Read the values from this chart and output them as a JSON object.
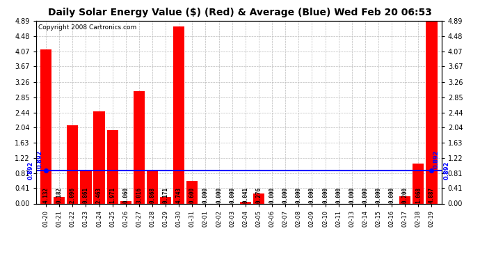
{
  "title": "Daily Solar Energy Value ($) (Red) & Average (Blue) Wed Feb 20 06:53",
  "copyright": "Copyright 2008 Cartronics.com",
  "categories": [
    "01-20",
    "01-21",
    "01-22",
    "01-23",
    "01-24",
    "01-25",
    "01-26",
    "01-27",
    "01-28",
    "01-29",
    "01-30",
    "01-31",
    "02-01",
    "02-02",
    "02-03",
    "02-04",
    "02-05",
    "02-06",
    "02-07",
    "02-08",
    "02-09",
    "02-10",
    "02-11",
    "02-13",
    "02-14",
    "02-15",
    "02-16",
    "02-17",
    "02-18",
    "02-19"
  ],
  "values": [
    4.132,
    0.182,
    2.096,
    0.861,
    2.463,
    1.971,
    0.06,
    3.016,
    0.868,
    0.171,
    4.743,
    0.6,
    0.0,
    0.0,
    0.0,
    0.041,
    0.276,
    0.0,
    0.0,
    0.0,
    0.0,
    0.0,
    0.0,
    0.0,
    0.0,
    0.0,
    0.0,
    0.2,
    1.068,
    4.887
  ],
  "average": 0.892,
  "ylim_min": 0.0,
  "ylim_max": 4.89,
  "yticks": [
    0.0,
    0.41,
    0.81,
    1.22,
    1.63,
    2.04,
    2.44,
    2.85,
    3.26,
    3.67,
    4.07,
    4.48,
    4.89
  ],
  "bar_color": "#ff0000",
  "avg_color": "#0000ff",
  "background_color": "#ffffff",
  "grid_color": "#bbbbbb",
  "title_fontsize": 10,
  "copyright_fontsize": 6.5,
  "value_fontsize": 5.5,
  "tick_fontsize": 7,
  "xtick_fontsize": 6
}
